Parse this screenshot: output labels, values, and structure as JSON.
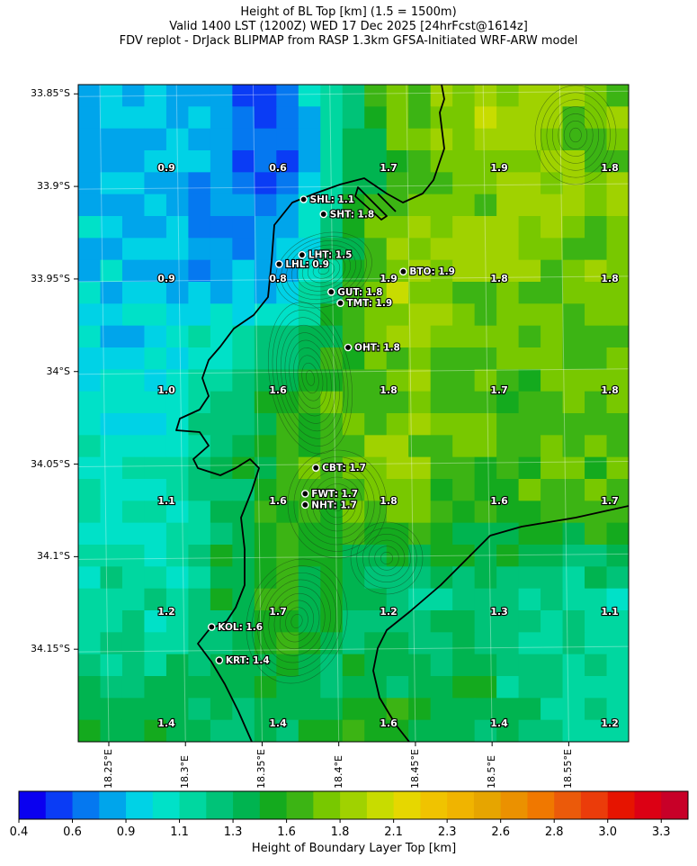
{
  "titles": {
    "line1": "Height of BL Top [km] (1.5 = 1500m)",
    "line2": "Valid 1400 LST (1200Z) WED 17 Dec 2025 [24hrFcst@1614z]",
    "line3": "FDV replot - DrJack BLIPMAP from RASP 1.3km GFSA-Initiated WRF-ARW model"
  },
  "axes": {
    "lat_labels": [
      "33.85°S",
      "33.9°S",
      "33.95°S",
      "34°S",
      "34.05°S",
      "34.1°S",
      "34.15°S"
    ],
    "lon_labels": [
      "18.25°E",
      "18.3°E",
      "18.35°E",
      "18.4°E",
      "18.45°E",
      "18.5°E",
      "18.55°E"
    ]
  },
  "grid_values": [
    [
      "0.9",
      "0.6",
      "1.7",
      "1.9",
      "1.8"
    ],
    [
      "0.9",
      "0.8",
      "1.9",
      "1.8",
      "1.8"
    ],
    [
      "1.0",
      "1.6",
      "1.8",
      "1.7",
      "1.8"
    ],
    [
      "1.1",
      "1.6",
      "1.8",
      "1.6",
      "1.7"
    ],
    [
      "1.2",
      "1.7",
      "1.2",
      "1.3",
      "1.1"
    ],
    [
      "1.4",
      "1.4",
      "1.6",
      "1.4",
      "1.2"
    ]
  ],
  "stations": [
    {
      "label": "SHL: 1.1",
      "lon": 18.38,
      "lat": -33.907
    },
    {
      "label": "SHT: 1.8",
      "lon": 18.393,
      "lat": -33.915
    },
    {
      "label": "LHT: 1.5",
      "lon": 18.379,
      "lat": -33.937
    },
    {
      "label": "LHL: 0.9",
      "lon": 18.364,
      "lat": -33.942
    },
    {
      "label": "BTO: 1.9",
      "lon": 18.445,
      "lat": -33.946
    },
    {
      "label": "GUT: 1.8",
      "lon": 18.398,
      "lat": -33.957
    },
    {
      "label": "TMT: 1.9",
      "lon": 18.404,
      "lat": -33.963
    },
    {
      "label": "OHT: 1.8",
      "lon": 18.409,
      "lat": -33.987
    },
    {
      "label": "CBT: 1.7",
      "lon": 18.388,
      "lat": -34.052
    },
    {
      "label": "FWT: 1.7",
      "lon": 18.381,
      "lat": -34.066
    },
    {
      "label": "NHT: 1.7",
      "lon": 18.381,
      "lat": -34.072
    },
    {
      "label": "KOL: 1.6",
      "lon": 18.32,
      "lat": -34.138
    },
    {
      "label": "KRT: 1.4",
      "lon": 18.325,
      "lat": -34.156
    }
  ],
  "colorbar": {
    "title": "Height of Boundary Layer Top [km]",
    "tick_labels": [
      "0.4",
      "0.6",
      "0.9",
      "1.1",
      "1.3",
      "1.6",
      "1.8",
      "2.1",
      "2.3",
      "2.6",
      "2.8",
      "3.0",
      "3.3"
    ],
    "colors": [
      "#0a00f0",
      "#0a3cf5",
      "#0578f0",
      "#00a5eb",
      "#00d2e6",
      "#00e1c8",
      "#00d7a0",
      "#00c378",
      "#00b450",
      "#14aa1e",
      "#3cb414",
      "#78c800",
      "#a0d200",
      "#c8dc00",
      "#e6d700",
      "#f0c300",
      "#f0b400",
      "#e6a500",
      "#eb9100",
      "#f07800",
      "#eb5a0a",
      "#eb3c0a",
      "#e61400",
      "#dc0014",
      "#c80028"
    ]
  },
  "colors": {
    "coast": "#000000",
    "contour": "#1a3a1a",
    "station_dot": "#000000"
  }
}
